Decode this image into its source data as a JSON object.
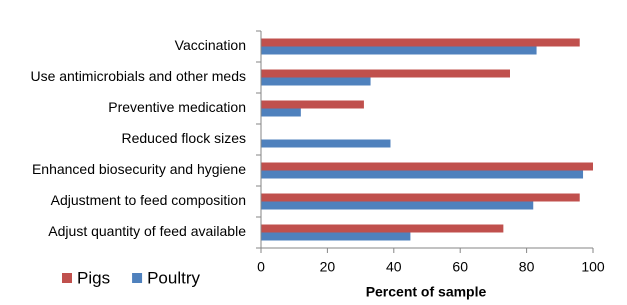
{
  "chart_data": {
    "type": "hbar",
    "categories": [
      "Vaccination",
      "Use antimicrobials and other meds",
      "Preventive medication",
      "Reduced flock sizes",
      "Enhanced biosecurity and hygiene",
      "Adjustment to feed composition",
      "Adjust quantity of feed available"
    ],
    "series": [
      {
        "name": "Pigs",
        "color": "#c0504d",
        "values": [
          96,
          75,
          31,
          0,
          100,
          96,
          73
        ]
      },
      {
        "name": "Poultry",
        "color": "#4f81bd",
        "values": [
          83,
          33,
          12,
          39,
          97,
          82,
          45
        ]
      }
    ],
    "xlabel": "Percent of sample",
    "xlim": [
      0,
      100
    ],
    "xticks": [
      0,
      20,
      40,
      60,
      80,
      100
    ],
    "grid": false,
    "legend": "bottom-left"
  }
}
